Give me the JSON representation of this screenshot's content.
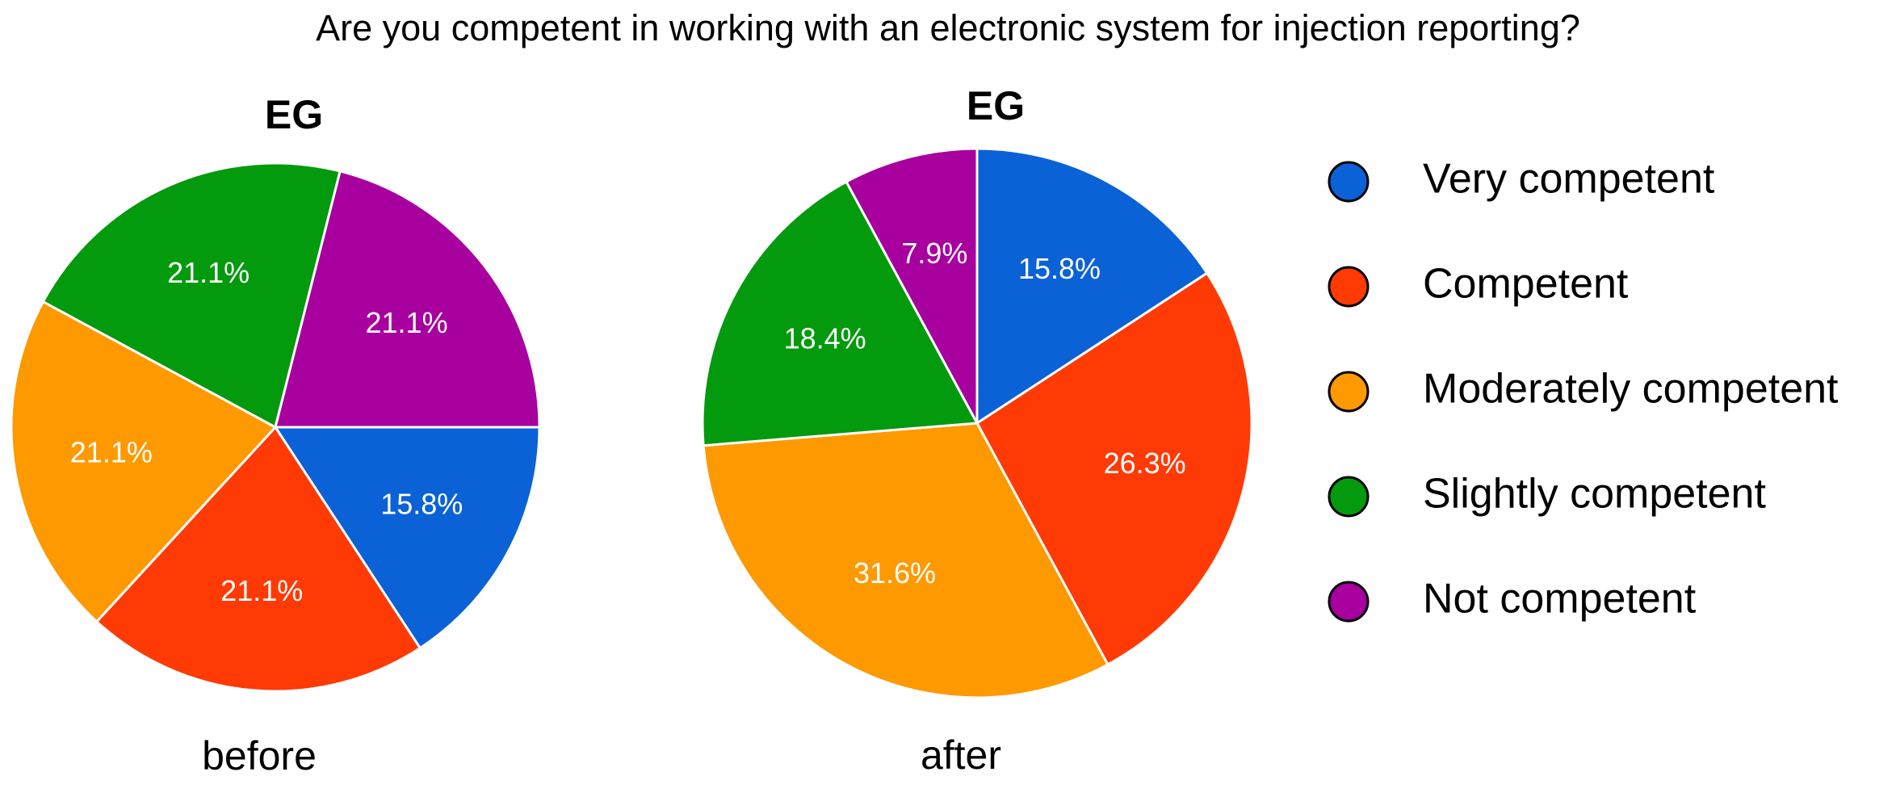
{
  "title": "Are you competent in working with an electronic system for injection reporting?",
  "chart_data": [
    {
      "type": "pie",
      "title": "EG",
      "caption": "before",
      "start_angle": 90,
      "categories": [
        "Very competent",
        "Competent",
        "Moderately competent",
        "Slightly competent",
        "Not competent"
      ],
      "colors": [
        "#0b62d6",
        "#ff3a05",
        "#ff9900",
        "#049a0e",
        "#a8009e"
      ],
      "values": [
        15.8,
        21.1,
        21.1,
        21.1,
        21.1
      ],
      "value_labels": [
        "15.8%",
        "21.1%",
        "21.1%",
        "21.1%",
        "21.1%"
      ]
    },
    {
      "type": "pie",
      "title": "EG",
      "caption": "after",
      "start_angle": 0,
      "categories": [
        "Very competent",
        "Competent",
        "Moderately competent",
        "Slightly competent",
        "Not competent"
      ],
      "colors": [
        "#0b62d6",
        "#ff3a05",
        "#ff9900",
        "#049a0e",
        "#a8009e"
      ],
      "values": [
        15.8,
        26.3,
        31.6,
        18.4,
        7.9
      ],
      "value_labels": [
        "15.8%",
        "26.3%",
        "31.6%",
        "18.4%",
        "7.9%"
      ]
    }
  ]
}
